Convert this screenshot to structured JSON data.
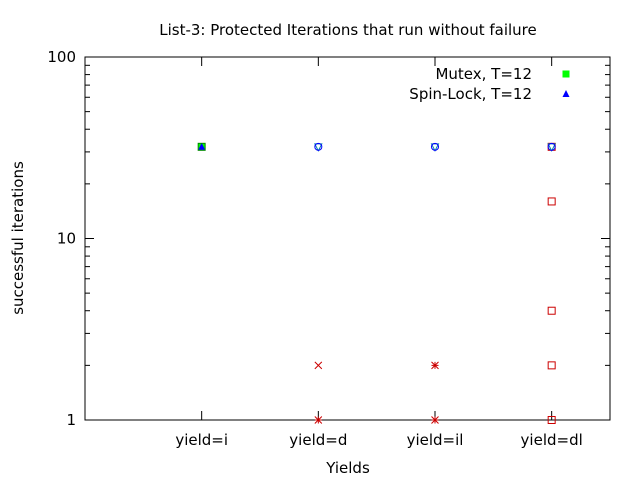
{
  "chart_data": {
    "type": "scatter",
    "title": "List-3: Protected Iterations that run without failure",
    "xlabel": "Yields",
    "ylabel": "successful iterations",
    "yscale": "log",
    "ylim": [
      1,
      100
    ],
    "y_ticks": [
      1,
      10,
      100
    ],
    "categories": [
      "yield=i",
      "yield=d",
      "yield=il",
      "yield=dl"
    ],
    "xlim": [
      -1,
      3.5
    ],
    "legend_position": "top-right",
    "grid": false,
    "series": [
      {
        "name": "Mutex, T=12",
        "marker": "filled-square",
        "color": "#00ff00",
        "points": [
          {
            "x": "yield=i",
            "y": 32
          }
        ]
      },
      {
        "name": "Spin-Lock, T=12",
        "marker": "filled-triangle",
        "color": "#0000ff",
        "points": [
          {
            "x": "yield=i",
            "y": 32
          }
        ]
      },
      {
        "name": "",
        "marker": "cross",
        "color": "#cc0000",
        "points": [
          {
            "x": "yield=d",
            "y": 2
          },
          {
            "x": "yield=d",
            "y": 1
          },
          {
            "x": "yield=il",
            "y": 2
          },
          {
            "x": "yield=il",
            "y": 1
          }
        ]
      },
      {
        "name": "",
        "marker": "plus",
        "color": "#cc0000",
        "points": [
          {
            "x": "yield=il",
            "y": 2
          },
          {
            "x": "yield=il",
            "y": 1
          },
          {
            "x": "yield=d",
            "y": 1
          }
        ]
      },
      {
        "name": "",
        "marker": "open-square",
        "color": "#cc0000",
        "points": [
          {
            "x": "yield=dl",
            "y": 32
          },
          {
            "x": "yield=dl",
            "y": 16
          },
          {
            "x": "yield=dl",
            "y": 4
          },
          {
            "x": "yield=dl",
            "y": 2
          },
          {
            "x": "yield=dl",
            "y": 1
          }
        ]
      },
      {
        "name": "",
        "marker": "open-triangle-down",
        "color": "#0088aa",
        "points": [
          {
            "x": "yield=d",
            "y": 32
          },
          {
            "x": "yield=il",
            "y": 32
          },
          {
            "x": "yield=dl",
            "y": 32
          }
        ]
      },
      {
        "name": "",
        "marker": "open-circle",
        "color": "#0000ff",
        "points": [
          {
            "x": "yield=d",
            "y": 32
          },
          {
            "x": "yield=il",
            "y": 32
          },
          {
            "x": "yield=dl",
            "y": 32
          }
        ]
      },
      {
        "name": "",
        "marker": "open-square",
        "color": "#008800",
        "points": [
          {
            "x": "yield=i",
            "y": 32
          }
        ]
      }
    ]
  }
}
